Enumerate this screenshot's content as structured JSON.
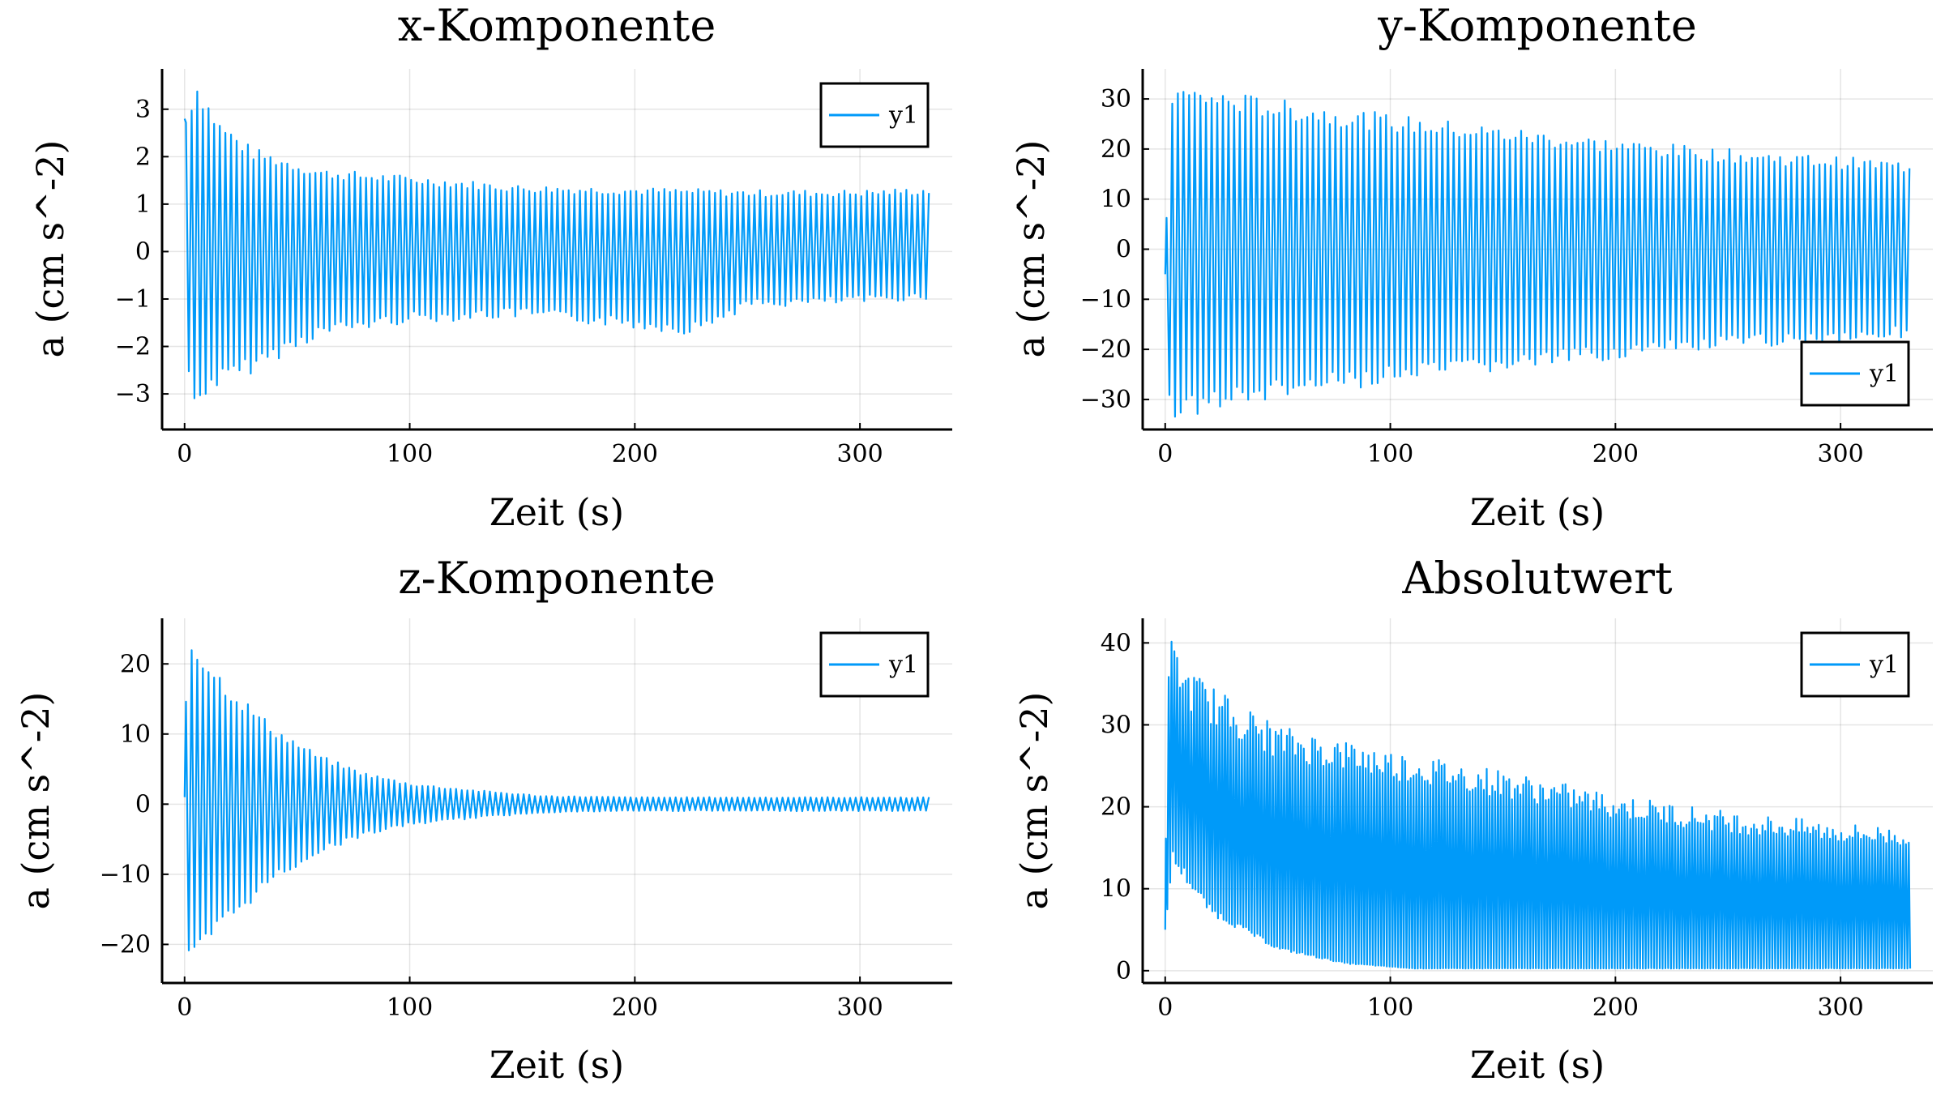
{
  "figure": {
    "background": "#ffffff",
    "series_color": "#009af9"
  },
  "chart_data": [
    {
      "type": "line",
      "title": "x-Komponente",
      "xlabel": "Zeit (s)",
      "ylabel": "a (cm s^-2)",
      "xlim": [
        -10,
        341
      ],
      "ylim": [
        -3.75,
        3.85
      ],
      "xticks": [
        0,
        100,
        200,
        300
      ],
      "xtick_labels": [
        "0",
        "100",
        "200",
        "300"
      ],
      "yticks": [
        -3,
        -2,
        -1,
        0,
        1,
        2,
        3
      ],
      "ytick_labels": [
        "−3",
        "−2",
        "−1",
        "0",
        "1",
        "2",
        "3"
      ],
      "grid": true,
      "legend_position": "top-right",
      "series": [
        {
          "name": "y1",
          "t_end": 331,
          "period": 2.5,
          "offset": 0.2,
          "envelope": [
            [
              0,
              2.8
            ],
            [
              5,
              3.7
            ],
            [
              15,
              2.8
            ],
            [
              30,
              2.2
            ],
            [
              60,
              1.75
            ],
            [
              100,
              1.6
            ],
            [
              150,
              1.4
            ],
            [
              200,
              1.35
            ],
            [
              250,
              1.3
            ],
            [
              300,
              1.3
            ],
            [
              331,
              1.35
            ]
          ],
          "min_envelope": [
            [
              0,
              -1.2
            ],
            [
              3,
              -3.6
            ],
            [
              10,
              -3.0
            ],
            [
              25,
              -2.7
            ],
            [
              40,
              -2.3
            ],
            [
              60,
              -1.8
            ],
            [
              100,
              -1.5
            ],
            [
              150,
              -1.4
            ],
            [
              226,
              -1.75
            ],
            [
              250,
              -1.2
            ],
            [
              300,
              -1.1
            ],
            [
              331,
              -1.0
            ]
          ]
        }
      ]
    },
    {
      "type": "line",
      "title": "y-Komponente",
      "xlabel": "Zeit (s)",
      "ylabel": "a (cm s^-2)",
      "xlim": [
        -10,
        341
      ],
      "ylim": [
        -36,
        36
      ],
      "xticks": [
        0,
        100,
        200,
        300
      ],
      "xtick_labels": [
        "0",
        "100",
        "200",
        "300"
      ],
      "yticks": [
        -30,
        -20,
        -10,
        0,
        10,
        20,
        30
      ],
      "ytick_labels": [
        "−30",
        "−20",
        "−10",
        "0",
        "10",
        "20",
        "30"
      ],
      "grid": true,
      "legend_position": "bottom-right",
      "series": [
        {
          "name": "y1",
          "t_end": 331,
          "period": 2.5,
          "offset": 0,
          "envelope": [
            [
              0,
              -5
            ],
            [
              2,
              33
            ],
            [
              15,
              32.5
            ],
            [
              50,
              30
            ],
            [
              100,
              27
            ],
            [
              150,
              24.5
            ],
            [
              200,
              22
            ],
            [
              250,
              20
            ],
            [
              300,
              18.5
            ],
            [
              331,
              17.5
            ]
          ],
          "min_envelope": [
            [
              0,
              -5
            ],
            [
              2,
              -34
            ],
            [
              15,
              -33
            ],
            [
              50,
              -30
            ],
            [
              100,
              -27
            ],
            [
              150,
              -24.5
            ],
            [
              200,
              -22
            ],
            [
              250,
              -20
            ],
            [
              300,
              -18.5
            ],
            [
              331,
              -17.5
            ]
          ]
        }
      ]
    },
    {
      "type": "line",
      "title": "z-Komponente",
      "xlabel": "Zeit (s)",
      "ylabel": "a (cm s^-2)",
      "xlim": [
        -10,
        341
      ],
      "ylim": [
        -25.5,
        26.5
      ],
      "xticks": [
        0,
        100,
        200,
        300
      ],
      "xtick_labels": [
        "0",
        "100",
        "200",
        "300"
      ],
      "yticks": [
        -20,
        -10,
        0,
        10,
        20
      ],
      "ytick_labels": [
        "−20",
        "−10",
        "0",
        "10",
        "20"
      ],
      "grid": true,
      "legend_position": "top-right",
      "series": [
        {
          "name": "y1",
          "t_end": 331,
          "period": 2.5,
          "offset": 0,
          "envelope": [
            [
              0,
              1
            ],
            [
              1,
              25
            ],
            [
              20,
              17
            ],
            [
              40,
              11
            ],
            [
              60,
              7
            ],
            [
              80,
              4.5
            ],
            [
              100,
              3
            ],
            [
              130,
              2
            ],
            [
              160,
              1.2
            ],
            [
              200,
              1
            ],
            [
              331,
              1
            ]
          ],
          "min_envelope": [
            [
              0,
              1
            ],
            [
              1,
              -24
            ],
            [
              20,
              -17
            ],
            [
              40,
              -11
            ],
            [
              60,
              -7
            ],
            [
              80,
              -4.5
            ],
            [
              100,
              -3
            ],
            [
              130,
              -2
            ],
            [
              160,
              -1.2
            ],
            [
              200,
              -1
            ],
            [
              331,
              -1
            ]
          ]
        }
      ]
    },
    {
      "type": "line",
      "title": "Absolutwert",
      "xlabel": "Zeit (s)",
      "ylabel": "a (cm s^-2)",
      "xlim": [
        -10,
        341
      ],
      "ylim": [
        -1.5,
        43
      ],
      "xticks": [
        0,
        100,
        200,
        300
      ],
      "xtick_labels": [
        "0",
        "100",
        "200",
        "300"
      ],
      "yticks": [
        0,
        10,
        20,
        30,
        40
      ],
      "ytick_labels": [
        "0",
        "10",
        "20",
        "30",
        "40"
      ],
      "grid": true,
      "legend_position": "top-right",
      "series": [
        {
          "name": "y1",
          "t_end": 331,
          "period": 1.25,
          "offset": 0,
          "envelope": [
            [
              0,
              5
            ],
            [
              1,
              41.5
            ],
            [
              10,
              37
            ],
            [
              25,
              34
            ],
            [
              50,
              30
            ],
            [
              100,
              27
            ],
            [
              150,
              24.5
            ],
            [
              200,
              21.5
            ],
            [
              250,
              19.5
            ],
            [
              300,
              18
            ],
            [
              331,
              17.5
            ]
          ],
          "min_envelope": [
            [
              0,
              5
            ],
            [
              3,
              15
            ],
            [
              20,
              8
            ],
            [
              50,
              3
            ],
            [
              80,
              1
            ],
            [
              110,
              0.3
            ],
            [
              331,
              0.3
            ]
          ]
        }
      ]
    }
  ]
}
